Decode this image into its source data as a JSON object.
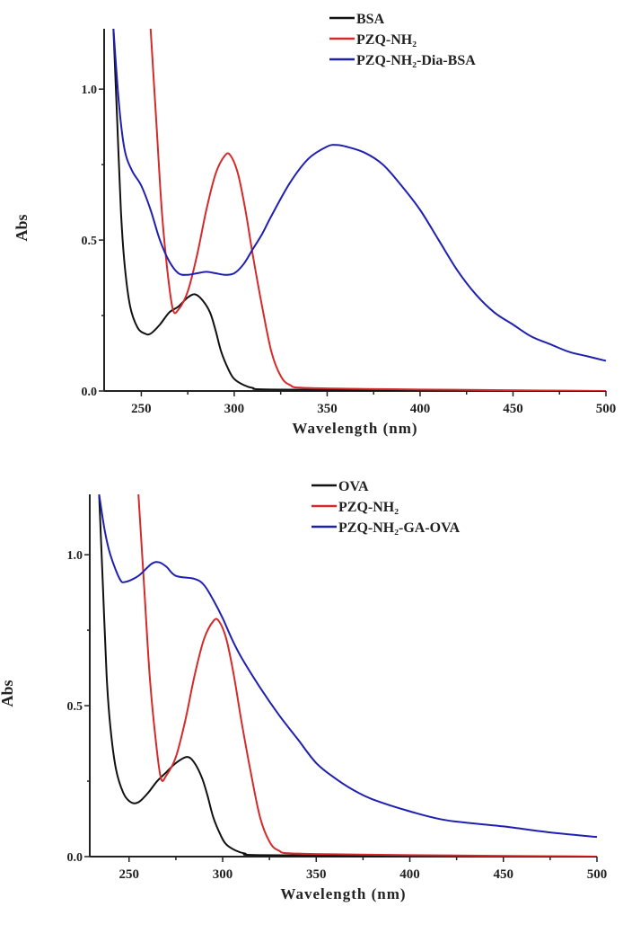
{
  "chart_data": [
    {
      "type": "line",
      "xlabel": "Wavelength (nm)",
      "ylabel": "Abs",
      "xlim": [
        230,
        500
      ],
      "ylim": [
        0,
        1.2
      ],
      "xticks": [
        "250",
        "300",
        "350",
        "400",
        "450",
        "500"
      ],
      "yticks": [
        "0.0",
        "0.5",
        "1.0"
      ],
      "grid": false,
      "legend": "top-right",
      "series": [
        {
          "name": "BSA",
          "color": "#111111",
          "x": [
            235,
            237,
            239,
            241,
            244,
            248,
            252,
            255,
            260,
            265,
            270,
            275,
            279,
            283,
            287,
            290,
            293,
            297,
            300,
            305,
            310,
            320,
            400,
            500
          ],
          "y": [
            1.2,
            0.9,
            0.6,
            0.42,
            0.28,
            0.21,
            0.19,
            0.19,
            0.22,
            0.26,
            0.28,
            0.31,
            0.32,
            0.3,
            0.26,
            0.2,
            0.13,
            0.07,
            0.04,
            0.02,
            0.01,
            0.005,
            0.002,
            0
          ]
        },
        {
          "name": "PZQ-NH₂",
          "color": "#d42a2a",
          "x": [
            255,
            258,
            261,
            264,
            267,
            270,
            275,
            280,
            285,
            290,
            295,
            298,
            302,
            306,
            310,
            315,
            320,
            325,
            330,
            340,
            400,
            500
          ],
          "y": [
            1.2,
            0.9,
            0.6,
            0.4,
            0.27,
            0.27,
            0.33,
            0.45,
            0.6,
            0.72,
            0.78,
            0.78,
            0.72,
            0.6,
            0.45,
            0.28,
            0.13,
            0.05,
            0.02,
            0.01,
            0.005,
            0
          ]
        },
        {
          "name": "PZQ-NH₂-Dia-BSA",
          "color": "#2020b0",
          "x": [
            235,
            238,
            241,
            245,
            250,
            255,
            260,
            265,
            270,
            275,
            280,
            285,
            290,
            295,
            300,
            305,
            310,
            315,
            320,
            330,
            340,
            350,
            355,
            360,
            370,
            380,
            390,
            400,
            410,
            420,
            430,
            440,
            450,
            460,
            470,
            480,
            490,
            500
          ],
          "y": [
            1.2,
            0.95,
            0.8,
            0.73,
            0.68,
            0.6,
            0.5,
            0.43,
            0.39,
            0.385,
            0.39,
            0.395,
            0.39,
            0.385,
            0.39,
            0.42,
            0.47,
            0.52,
            0.58,
            0.69,
            0.77,
            0.81,
            0.815,
            0.81,
            0.79,
            0.75,
            0.68,
            0.6,
            0.5,
            0.4,
            0.32,
            0.26,
            0.22,
            0.18,
            0.155,
            0.13,
            0.115,
            0.1
          ]
        }
      ]
    },
    {
      "type": "line",
      "xlabel": "Wavelength (nm)",
      "ylabel": "Abs",
      "xlim": [
        229,
        500
      ],
      "ylim": [
        0,
        1.2
      ],
      "xticks": [
        "250",
        "300",
        "350",
        "400",
        "450",
        "500"
      ],
      "yticks": [
        "0.0",
        "0.5",
        "1.0"
      ],
      "grid": false,
      "legend": "top-right",
      "series": [
        {
          "name": "OVA",
          "color": "#111111",
          "x": [
            234,
            236,
            238,
            240,
            243,
            247,
            251,
            255,
            260,
            265,
            270,
            275,
            281,
            285,
            289,
            292,
            295,
            299,
            302,
            307,
            312,
            320,
            400,
            500
          ],
          "y": [
            1.2,
            0.9,
            0.6,
            0.43,
            0.29,
            0.21,
            0.18,
            0.18,
            0.21,
            0.25,
            0.28,
            0.31,
            0.33,
            0.31,
            0.26,
            0.2,
            0.13,
            0.07,
            0.04,
            0.02,
            0.01,
            0.005,
            0.002,
            0
          ]
        },
        {
          "name": "PZQ-NH₂",
          "color": "#d42a2a",
          "x": [
            255,
            258,
            261,
            264,
            267,
            270,
            275,
            280,
            285,
            290,
            295,
            298,
            302,
            306,
            310,
            315,
            320,
            325,
            330,
            340,
            400,
            500
          ],
          "y": [
            1.2,
            0.9,
            0.6,
            0.4,
            0.26,
            0.27,
            0.33,
            0.45,
            0.6,
            0.72,
            0.78,
            0.78,
            0.72,
            0.6,
            0.45,
            0.28,
            0.13,
            0.05,
            0.02,
            0.01,
            0.005,
            0
          ]
        },
        {
          "name": "PZQ-NH₂-GA-OVA",
          "color": "#2020b0",
          "x": [
            234,
            237,
            240,
            245,
            248,
            255,
            262,
            266,
            270,
            275,
            285,
            290,
            295,
            300,
            305,
            310,
            320,
            330,
            340,
            350,
            360,
            370,
            380,
            400,
            420,
            450,
            475,
            500
          ],
          "y": [
            1.2,
            1.08,
            1.0,
            0.92,
            0.91,
            0.93,
            0.97,
            0.975,
            0.96,
            0.93,
            0.92,
            0.9,
            0.85,
            0.79,
            0.72,
            0.66,
            0.56,
            0.47,
            0.39,
            0.31,
            0.26,
            0.22,
            0.19,
            0.15,
            0.12,
            0.1,
            0.08,
            0.065
          ]
        }
      ]
    }
  ]
}
